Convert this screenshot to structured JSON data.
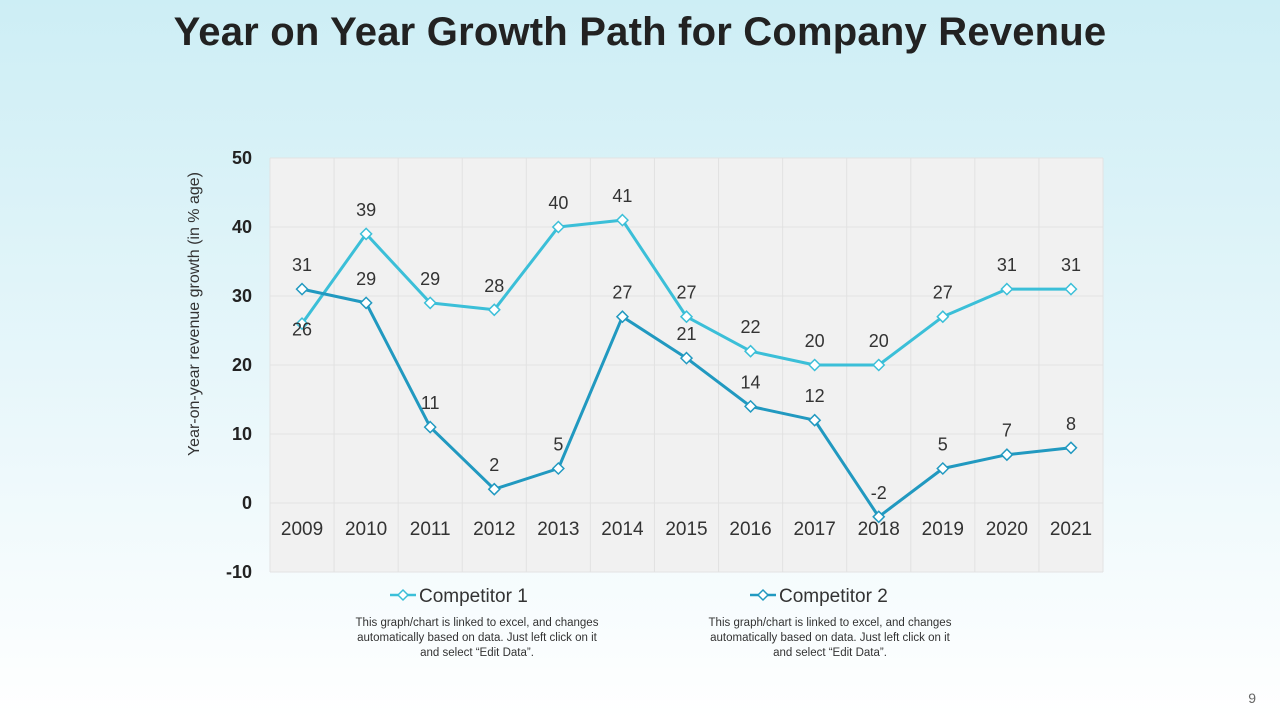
{
  "slide": {
    "title": "Year on Year Growth Path for Company Revenue",
    "page_number": "9",
    "notes": [
      "This graph/chart is linked to excel, and changes automatically based on data. Just left click on it and select “Edit Data”.",
      "This graph/chart is linked to excel, and changes automatically based on data. Just left click on it and select “Edit Data”."
    ]
  },
  "colors": {
    "competitor1": "#3bbfd8",
    "competitor2": "#2199c0",
    "plot_bg": "#f1f1f1",
    "grid": "#e2e2e2"
  },
  "chart_data": {
    "type": "line",
    "title": "",
    "xlabel": "",
    "ylabel": "Year-on-year revenue growth (in % age)",
    "ylim": [
      -10,
      50
    ],
    "yticks": [
      -10,
      0,
      10,
      20,
      30,
      40,
      50
    ],
    "categories": [
      "2009",
      "2010",
      "2011",
      "2012",
      "2013",
      "2014",
      "2015",
      "2016",
      "2017",
      "2018",
      "2019",
      "2020",
      "2021"
    ],
    "series": [
      {
        "name": "Competitor 1",
        "values": [
          26,
          39,
          29,
          28,
          40,
          41,
          27,
          22,
          20,
          20,
          27,
          31,
          31
        ]
      },
      {
        "name": "Competitor 2",
        "values": [
          31,
          29,
          11,
          2,
          5,
          27,
          21,
          14,
          12,
          -2,
          5,
          7,
          8
        ]
      }
    ],
    "legend_position": "bottom"
  }
}
